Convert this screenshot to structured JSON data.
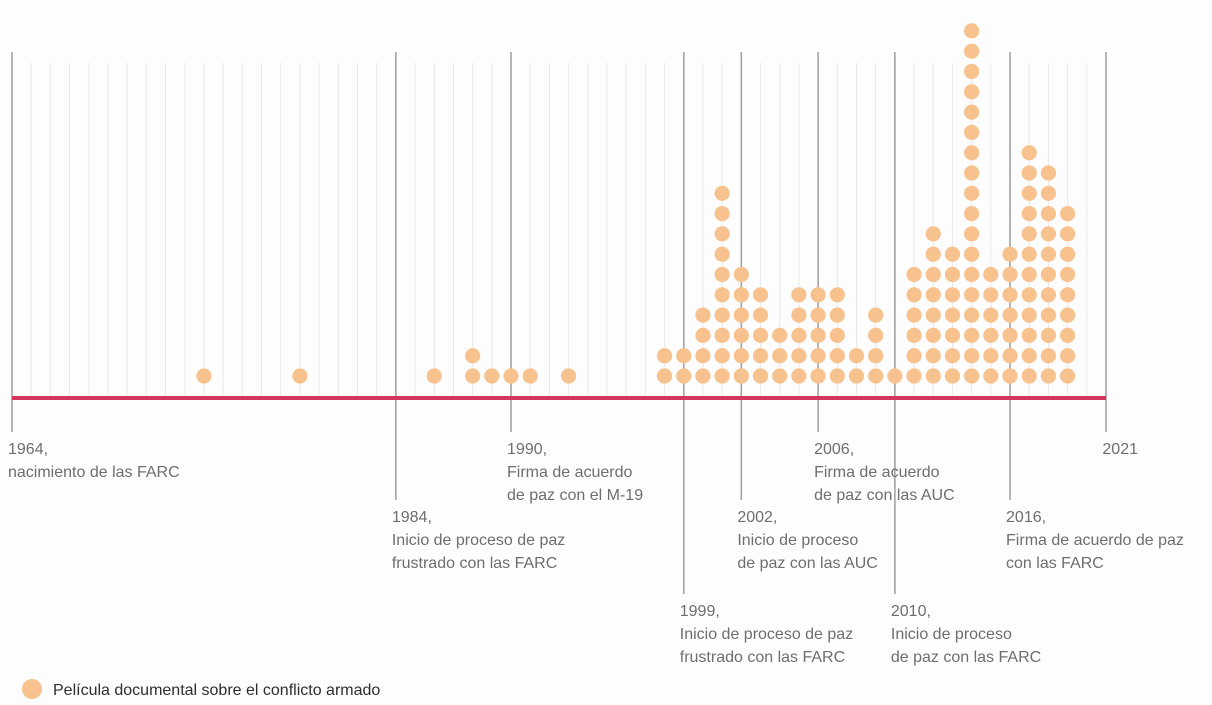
{
  "chart_data": {
    "type": "dot-timeline",
    "x_range": [
      1964,
      2021
    ],
    "counts": {
      "1974": 1,
      "1979": 1,
      "1986": 1,
      "1988": 2,
      "1989": 1,
      "1990": 1,
      "1991": 1,
      "1993": 1,
      "1998": 2,
      "1999": 2,
      "2000": 4,
      "2001": 10,
      "2002": 6,
      "2003": 5,
      "2004": 3,
      "2005": 5,
      "2006": 5,
      "2007": 5,
      "2008": 2,
      "2009": 4,
      "2010": 1,
      "2011": 6,
      "2012": 8,
      "2013": 7,
      "2014": 18,
      "2015": 6,
      "2016": 7,
      "2017": 12,
      "2018": 11,
      "2019": 9
    },
    "events": [
      {
        "year": 1964,
        "lines": [
          "1964,",
          "nacimiento de las FARC"
        ]
      },
      {
        "year": 1984,
        "lines": [
          "1984,",
          "Inicio de proceso de paz",
          "frustrado con las FARC"
        ]
      },
      {
        "year": 1990,
        "lines": [
          "1990,",
          "Firma de acuerdo",
          "de paz con el M-19"
        ]
      },
      {
        "year": 1999,
        "lines": [
          "1999,",
          "Inicio de proceso de paz",
          "frustrado con las FARC"
        ]
      },
      {
        "year": 2002,
        "lines": [
          "2002,",
          "Inicio de proceso",
          "de paz con las AUC"
        ]
      },
      {
        "year": 2006,
        "lines": [
          "2006,",
          "Firma de acuerdo",
          "de paz con las AUC"
        ]
      },
      {
        "year": 2010,
        "lines": [
          "2010,",
          "Inicio de proceso",
          "de paz con las FARC"
        ]
      },
      {
        "year": 2016,
        "lines": [
          "2016,",
          "Firma de acuerdo de paz",
          "con las FARC"
        ]
      },
      {
        "year": 2021,
        "lines": [
          "2021"
        ]
      }
    ],
    "legend": {
      "label": "Película documental sobre el conflicto armado",
      "placement": "bottom-left"
    },
    "colors": {
      "dot": "#f7c28e",
      "baseline": "#d3355c",
      "event_line": "#a3a3a3",
      "year_grid": "#e9e9e9",
      "text": "#6e6e6e"
    }
  }
}
